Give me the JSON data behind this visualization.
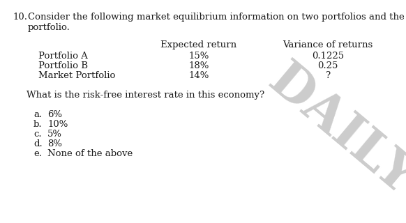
{
  "question_number": "10.",
  "question_text_line1": "Consider the following market equilibrium information on two portfolios and the market",
  "question_text_line2": "portfolio.",
  "col_header1": "Expected return",
  "col_header2": "Variance of returns",
  "rows": [
    {
      "label": "Portfolio A",
      "col1": "15%",
      "col2": "0.1225"
    },
    {
      "label": "Portfolio B",
      "col1": "18%",
      "col2": "0.25"
    },
    {
      "label": "Market Portfolio",
      "col1": "14%",
      "col2": "?"
    }
  ],
  "sub_question": "What is the risk-free interest rate in this economy?",
  "choices": [
    [
      "a.",
      "6%"
    ],
    [
      "b.",
      "10%"
    ],
    [
      "c.",
      "5%"
    ],
    [
      "d.",
      "8%"
    ],
    [
      "e.",
      "None of the above"
    ]
  ],
  "watermark_text": "DAILY",
  "watermark_color": "#999999",
  "background_color": "#ffffff",
  "text_color": "#1a1a1a",
  "font_size": 9.5,
  "font_family": "DejaVu Serif"
}
